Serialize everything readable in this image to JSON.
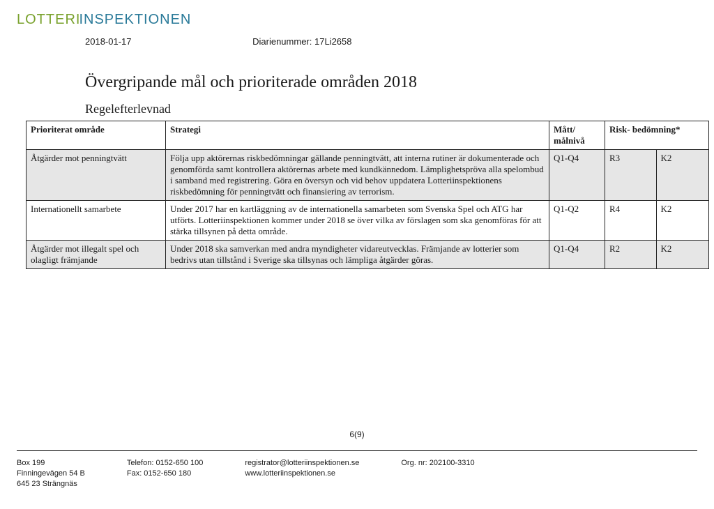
{
  "logo": {
    "top": "LOTTERI",
    "bottom": "INSPEKTIONEN"
  },
  "meta": {
    "date": "2018-01-17",
    "diarie_label": "Diarienummer:",
    "diarie_value": "17Li2658"
  },
  "title": "Övergripande mål och prioriterade områden 2018",
  "subtitle": "Regelefterlevnad",
  "table": {
    "headers": {
      "area": "Prioriterat område",
      "strategy": "Strategi",
      "matt": "Mått/ målnivå",
      "risk": "Risk- bedömning*"
    },
    "rows": [
      {
        "shaded": true,
        "area": "Åtgärder mot penningtvätt",
        "strategy": "Följa upp aktörernas riskbedömningar gällande penningtvätt, att interna rutiner är dokumenterade och genomförda samt kontrollera aktörernas arbete med kundkännedom. Lämplighetspröva alla spelombud i samband med registrering. Göra en översyn och vid behov uppdatera Lotteriinspektionens riskbedömning för penningtvätt och finansiering av terrorism.",
        "matt": "Q1-Q4",
        "r": "R3",
        "k": "K2"
      },
      {
        "shaded": false,
        "area": "Internationellt samarbete",
        "strategy": "Under 2017 har en kartläggning av de internationella samarbeten som Svenska Spel och ATG har utförts. Lotteriinspektionen kommer under 2018 se över vilka av förslagen som ska genomföras för att stärka tillsynen på detta område.",
        "matt": "Q1-Q2",
        "r": "R4",
        "k": "K2"
      },
      {
        "shaded": true,
        "area": "Åtgärder mot illegalt spel och olagligt främjande",
        "strategy": "Under 2018 ska samverkan med andra myndigheter vidareutvecklas. Främjande av lotterier som bedrivs utan tillstånd i Sverige ska tillsynas och lämpliga åtgärder göras.",
        "matt": "Q1-Q4",
        "r": "R2",
        "k": "K2"
      }
    ]
  },
  "page_number": "6(9)",
  "footer": {
    "col1": {
      "l1": "Box 199",
      "l2": "Finningevägen 54 B",
      "l3": "645 23 Strängnäs"
    },
    "col2": {
      "l1": "Telefon: 0152-650 100",
      "l2": "Fax: 0152-650 180"
    },
    "col3": {
      "l1": "registrator@lotteriinspektionen.se",
      "l2": "www.lotteriinspektionen.se"
    },
    "col4": {
      "l1": "Org. nr: 202100-3310"
    }
  }
}
